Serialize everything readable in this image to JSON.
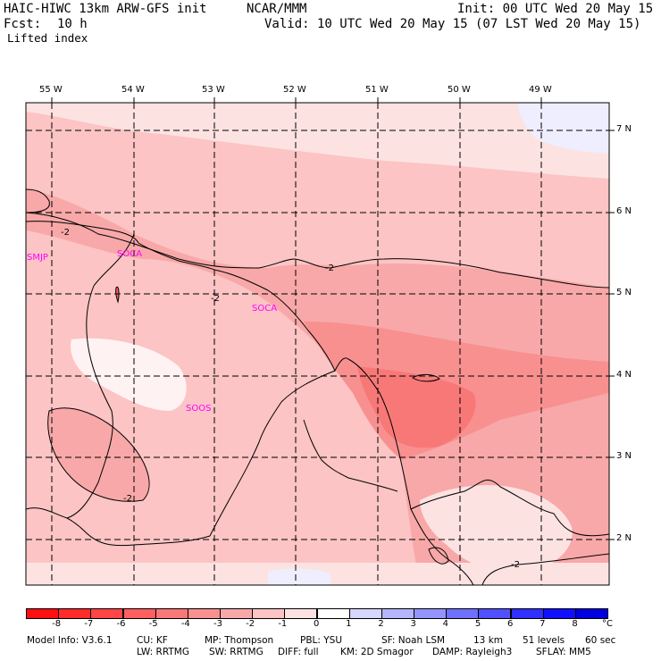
{
  "header": {
    "model": "HAIC-HIWC 13km ARW-GFS init",
    "org": "NCAR/MMM",
    "init": "Init: 00 UTC Wed 20 May 15",
    "fcst_label": "Fcst:",
    "fcst_value": "10 h",
    "valid": "Valid: 10 UTC Wed 20 May 15 (07 LST Wed 20 May 15)",
    "field": "Lifted index"
  },
  "longitudes": [
    "55 W",
    "54 W",
    "53 W",
    "52 W",
    "51 W",
    "50 W",
    "49 W"
  ],
  "latitudes": [
    "7 N",
    "6 N",
    "5 N",
    "4 N",
    "3 N",
    "2 N"
  ],
  "stations": [
    "SMJP",
    "SOCA",
    "SOCA",
    "SOOS"
  ],
  "contour_labels": [
    "-2",
    "-2",
    "-2",
    "-2",
    "-2"
  ],
  "colorbar": {
    "labels": [
      "-8",
      "-7",
      "-6",
      "-5",
      "-4",
      "-3",
      "-2",
      "-1",
      "0",
      "1",
      "2",
      "3",
      "4",
      "5",
      "6",
      "7",
      "8"
    ],
    "unit": "°C",
    "colors": [
      "#ff1010",
      "#ff2b2b",
      "#ff4545",
      "#ff5f5f",
      "#f87878",
      "#f89090",
      "#f8a8a8",
      "#fcc4c4",
      "#fde2e2",
      "#ffffff",
      "#d6d6ff",
      "#b4b4ff",
      "#9494ff",
      "#7070ff",
      "#5050ff",
      "#3030ff",
      "#1010ff",
      "#0000e0"
    ]
  },
  "footer": {
    "line1": [
      "Model Info: V3.6.1",
      "CU: KF",
      "MP: Thompson",
      "PBL: YSU",
      "SF: Noah LSM",
      "13 km",
      "51 levels",
      "60 sec"
    ],
    "line2": [
      "LW: RRTMG",
      "SW: RRTMG",
      "DIFF: full",
      "KM: 2D Smagor",
      "DAMP: Rayleigh3",
      "SFLAY: MM5"
    ]
  }
}
